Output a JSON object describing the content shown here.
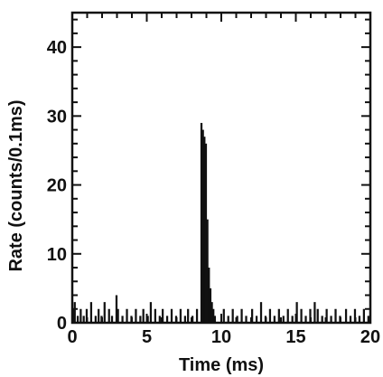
{
  "chart_data": {
    "type": "bar",
    "title": "",
    "xlabel": "Time (ms)",
    "ylabel": "Rate (counts/0.1ms)",
    "xlim": [
      0,
      20
    ],
    "ylim": [
      0,
      45
    ],
    "x_ticks": [
      0,
      5,
      10,
      15,
      20
    ],
    "y_ticks": [
      0,
      10,
      20,
      30,
      40
    ],
    "x_tick_labels": [
      "0",
      "5",
      "10",
      "15",
      "20"
    ],
    "y_tick_labels": [
      "0",
      "10",
      "20",
      "30",
      "40"
    ],
    "bin_width": 0.1,
    "grid": false,
    "legend": "none",
    "color": "#111111",
    "bins": [
      {
        "x": 0.0,
        "y": 2
      },
      {
        "x": 0.1,
        "y": 3
      },
      {
        "x": 0.3,
        "y": 1
      },
      {
        "x": 0.5,
        "y": 2
      },
      {
        "x": 0.7,
        "y": 1
      },
      {
        "x": 0.9,
        "y": 2
      },
      {
        "x": 1.2,
        "y": 3
      },
      {
        "x": 1.5,
        "y": 1
      },
      {
        "x": 1.7,
        "y": 2
      },
      {
        "x": 1.9,
        "y": 1
      },
      {
        "x": 2.1,
        "y": 3
      },
      {
        "x": 2.4,
        "y": 2
      },
      {
        "x": 2.6,
        "y": 1
      },
      {
        "x": 2.9,
        "y": 4
      },
      {
        "x": 3.0,
        "y": 2
      },
      {
        "x": 3.3,
        "y": 1
      },
      {
        "x": 3.6,
        "y": 2
      },
      {
        "x": 3.9,
        "y": 1
      },
      {
        "x": 4.2,
        "y": 2
      },
      {
        "x": 4.5,
        "y": 1
      },
      {
        "x": 4.7,
        "y": 2
      },
      {
        "x": 5.0,
        "y": 1
      },
      {
        "x": 5.2,
        "y": 3
      },
      {
        "x": 5.5,
        "y": 2
      },
      {
        "x": 5.8,
        "y": 1
      },
      {
        "x": 6.0,
        "y": 2
      },
      {
        "x": 6.3,
        "y": 1
      },
      {
        "x": 6.6,
        "y": 2
      },
      {
        "x": 6.9,
        "y": 1
      },
      {
        "x": 7.2,
        "y": 2
      },
      {
        "x": 7.5,
        "y": 1
      },
      {
        "x": 7.7,
        "y": 2
      },
      {
        "x": 8.0,
        "y": 1
      },
      {
        "x": 8.3,
        "y": 2
      },
      {
        "x": 8.6,
        "y": 29
      },
      {
        "x": 8.7,
        "y": 28
      },
      {
        "x": 8.8,
        "y": 27
      },
      {
        "x": 8.9,
        "y": 26
      },
      {
        "x": 9.0,
        "y": 15
      },
      {
        "x": 9.1,
        "y": 8
      },
      {
        "x": 9.2,
        "y": 5
      },
      {
        "x": 9.3,
        "y": 3
      },
      {
        "x": 9.4,
        "y": 2
      },
      {
        "x": 9.5,
        "y": 1
      },
      {
        "x": 10.1,
        "y": 2
      },
      {
        "x": 10.4,
        "y": 1
      },
      {
        "x": 10.7,
        "y": 2
      },
      {
        "x": 11.0,
        "y": 1
      },
      {
        "x": 11.3,
        "y": 2
      },
      {
        "x": 11.6,
        "y": 1
      },
      {
        "x": 12.0,
        "y": 2
      },
      {
        "x": 12.3,
        "y": 1
      },
      {
        "x": 12.6,
        "y": 3
      },
      {
        "x": 12.9,
        "y": 1
      },
      {
        "x": 13.2,
        "y": 2
      },
      {
        "x": 13.5,
        "y": 1
      },
      {
        "x": 13.8,
        "y": 2
      },
      {
        "x": 14.1,
        "y": 1
      },
      {
        "x": 14.4,
        "y": 2
      },
      {
        "x": 14.7,
        "y": 1
      },
      {
        "x": 15.0,
        "y": 3
      },
      {
        "x": 15.3,
        "y": 2
      },
      {
        "x": 15.6,
        "y": 1
      },
      {
        "x": 15.9,
        "y": 2
      },
      {
        "x": 16.2,
        "y": 3
      },
      {
        "x": 16.4,
        "y": 2
      },
      {
        "x": 16.7,
        "y": 1
      },
      {
        "x": 17.0,
        "y": 2
      },
      {
        "x": 17.3,
        "y": 1
      },
      {
        "x": 17.6,
        "y": 2
      },
      {
        "x": 17.9,
        "y": 1
      },
      {
        "x": 18.3,
        "y": 2
      },
      {
        "x": 18.6,
        "y": 1
      },
      {
        "x": 18.9,
        "y": 2
      },
      {
        "x": 19.2,
        "y": 1
      },
      {
        "x": 19.5,
        "y": 2
      },
      {
        "x": 19.8,
        "y": 1
      }
    ]
  }
}
